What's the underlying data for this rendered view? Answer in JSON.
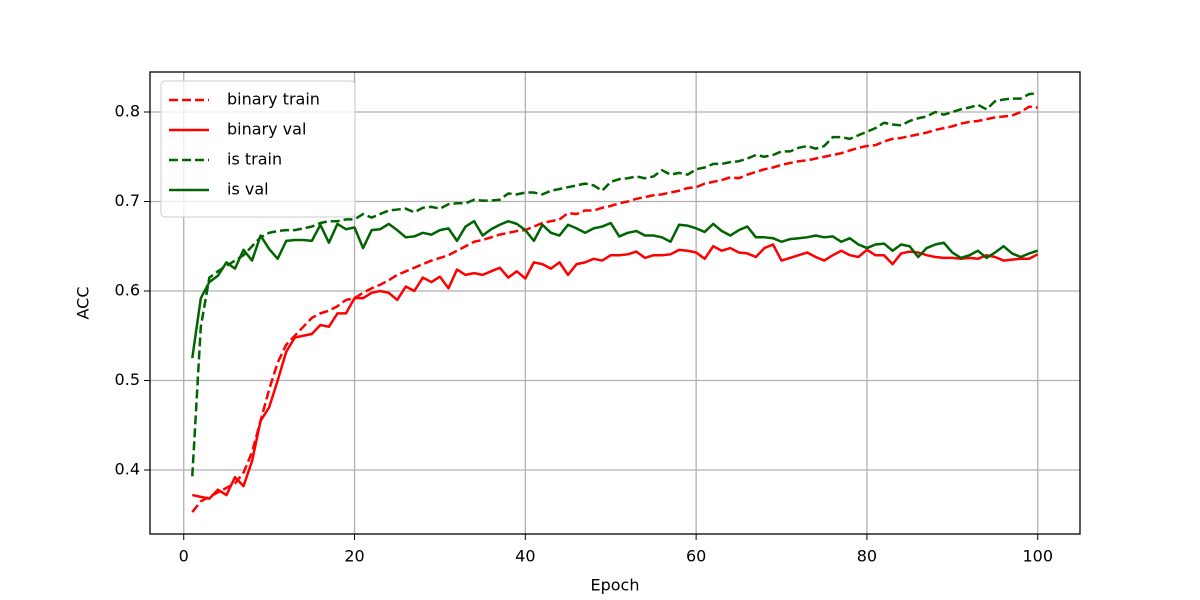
{
  "chart_data": {
    "type": "line",
    "xlabel": "Epoch",
    "ylabel": "ACC",
    "x": [
      1,
      2,
      3,
      4,
      5,
      6,
      7,
      8,
      9,
      10,
      11,
      12,
      13,
      14,
      15,
      16,
      17,
      18,
      19,
      20,
      21,
      22,
      23,
      24,
      25,
      26,
      27,
      28,
      29,
      30,
      31,
      32,
      33,
      34,
      35,
      36,
      37,
      38,
      39,
      40,
      41,
      42,
      43,
      44,
      45,
      46,
      47,
      48,
      49,
      50,
      51,
      52,
      53,
      54,
      55,
      56,
      57,
      58,
      59,
      60,
      61,
      62,
      63,
      64,
      65,
      66,
      67,
      68,
      69,
      70,
      71,
      72,
      73,
      74,
      75,
      76,
      77,
      78,
      79,
      80,
      81,
      82,
      83,
      84,
      85,
      86,
      87,
      88,
      89,
      90,
      91,
      92,
      93,
      94,
      95,
      96,
      97,
      98,
      99,
      100
    ],
    "series": [
      {
        "name": "binary train",
        "color": "#ff0000",
        "style": "dashed",
        "values": [
          0.353,
          0.365,
          0.37,
          0.375,
          0.38,
          0.385,
          0.397,
          0.42,
          0.455,
          0.49,
          0.52,
          0.54,
          0.55,
          0.56,
          0.57,
          0.575,
          0.578,
          0.583,
          0.59,
          0.592,
          0.598,
          0.603,
          0.607,
          0.612,
          0.618,
          0.622,
          0.626,
          0.63,
          0.634,
          0.637,
          0.64,
          0.645,
          0.65,
          0.655,
          0.657,
          0.66,
          0.663,
          0.665,
          0.667,
          0.668,
          0.672,
          0.676,
          0.678,
          0.68,
          0.687,
          0.686,
          0.69,
          0.69,
          0.693,
          0.695,
          0.698,
          0.7,
          0.703,
          0.705,
          0.707,
          0.708,
          0.71,
          0.712,
          0.715,
          0.716,
          0.72,
          0.722,
          0.724,
          0.727,
          0.726,
          0.73,
          0.733,
          0.736,
          0.738,
          0.741,
          0.743,
          0.745,
          0.746,
          0.748,
          0.75,
          0.752,
          0.754,
          0.757,
          0.76,
          0.762,
          0.763,
          0.767,
          0.77,
          0.771,
          0.773,
          0.775,
          0.777,
          0.78,
          0.782,
          0.784,
          0.787,
          0.789,
          0.79,
          0.792,
          0.794,
          0.795,
          0.796,
          0.8,
          0.806,
          0.805
        ]
      },
      {
        "name": "binary val",
        "color": "#ff0000",
        "style": "solid",
        "values": [
          0.372,
          0.37,
          0.368,
          0.378,
          0.372,
          0.392,
          0.382,
          0.41,
          0.455,
          0.47,
          0.5,
          0.532,
          0.548,
          0.55,
          0.552,
          0.562,
          0.56,
          0.575,
          0.575,
          0.592,
          0.592,
          0.598,
          0.6,
          0.598,
          0.59,
          0.605,
          0.6,
          0.615,
          0.61,
          0.616,
          0.603,
          0.624,
          0.618,
          0.62,
          0.618,
          0.622,
          0.626,
          0.615,
          0.622,
          0.614,
          0.632,
          0.63,
          0.625,
          0.632,
          0.618,
          0.63,
          0.632,
          0.636,
          0.634,
          0.64,
          0.64,
          0.641,
          0.644,
          0.637,
          0.64,
          0.64,
          0.641,
          0.646,
          0.645,
          0.643,
          0.636,
          0.65,
          0.645,
          0.648,
          0.643,
          0.642,
          0.638,
          0.648,
          0.652,
          0.634,
          0.637,
          0.64,
          0.643,
          0.638,
          0.634,
          0.64,
          0.645,
          0.64,
          0.638,
          0.646,
          0.64,
          0.64,
          0.63,
          0.642,
          0.644,
          0.643,
          0.64,
          0.638,
          0.637,
          0.637,
          0.636,
          0.637,
          0.636,
          0.64,
          0.638,
          0.634,
          0.635,
          0.636,
          0.636,
          0.641
        ]
      },
      {
        "name": "is train",
        "color": "#006400",
        "style": "dashed",
        "values": [
          0.393,
          0.56,
          0.615,
          0.622,
          0.628,
          0.634,
          0.64,
          0.65,
          0.66,
          0.665,
          0.667,
          0.668,
          0.668,
          0.67,
          0.672,
          0.676,
          0.678,
          0.678,
          0.68,
          0.68,
          0.686,
          0.682,
          0.686,
          0.69,
          0.691,
          0.692,
          0.688,
          0.693,
          0.694,
          0.692,
          0.697,
          0.698,
          0.698,
          0.702,
          0.701,
          0.701,
          0.702,
          0.709,
          0.708,
          0.71,
          0.71,
          0.708,
          0.712,
          0.714,
          0.716,
          0.718,
          0.72,
          0.718,
          0.712,
          0.722,
          0.725,
          0.726,
          0.728,
          0.726,
          0.728,
          0.735,
          0.73,
          0.732,
          0.73,
          0.736,
          0.738,
          0.742,
          0.742,
          0.744,
          0.745,
          0.748,
          0.752,
          0.75,
          0.752,
          0.756,
          0.756,
          0.76,
          0.762,
          0.759,
          0.762,
          0.772,
          0.772,
          0.77,
          0.774,
          0.778,
          0.782,
          0.788,
          0.786,
          0.785,
          0.79,
          0.793,
          0.795,
          0.8,
          0.797,
          0.8,
          0.803,
          0.805,
          0.808,
          0.803,
          0.812,
          0.814,
          0.815,
          0.815,
          0.82,
          0.821
        ]
      },
      {
        "name": "is val",
        "color": "#006400",
        "style": "solid",
        "values": [
          0.525,
          0.592,
          0.61,
          0.617,
          0.632,
          0.625,
          0.646,
          0.634,
          0.662,
          0.647,
          0.636,
          0.656,
          0.657,
          0.657,
          0.656,
          0.674,
          0.654,
          0.675,
          0.669,
          0.671,
          0.648,
          0.668,
          0.669,
          0.675,
          0.668,
          0.66,
          0.661,
          0.665,
          0.663,
          0.668,
          0.67,
          0.656,
          0.672,
          0.678,
          0.662,
          0.669,
          0.674,
          0.678,
          0.675,
          0.668,
          0.656,
          0.674,
          0.665,
          0.662,
          0.674,
          0.67,
          0.665,
          0.67,
          0.672,
          0.676,
          0.661,
          0.665,
          0.667,
          0.662,
          0.662,
          0.66,
          0.655,
          0.674,
          0.673,
          0.67,
          0.666,
          0.675,
          0.667,
          0.662,
          0.668,
          0.672,
          0.66,
          0.66,
          0.659,
          0.655,
          0.658,
          0.659,
          0.66,
          0.662,
          0.66,
          0.661,
          0.655,
          0.659,
          0.652,
          0.648,
          0.652,
          0.653,
          0.645,
          0.652,
          0.65,
          0.638,
          0.648,
          0.652,
          0.654,
          0.643,
          0.637,
          0.64,
          0.645,
          0.637,
          0.643,
          0.65,
          0.642,
          0.638,
          0.642,
          0.645
        ]
      }
    ],
    "xlim": [
      -3.95,
      104.95
    ],
    "xticks": [
      0,
      20,
      40,
      60,
      80,
      100
    ],
    "ylim": [
      0.3285,
      0.8447
    ],
    "yticks": [
      0.4,
      0.5,
      0.6,
      0.7,
      0.8
    ],
    "grid": true,
    "legend": "upper left"
  }
}
